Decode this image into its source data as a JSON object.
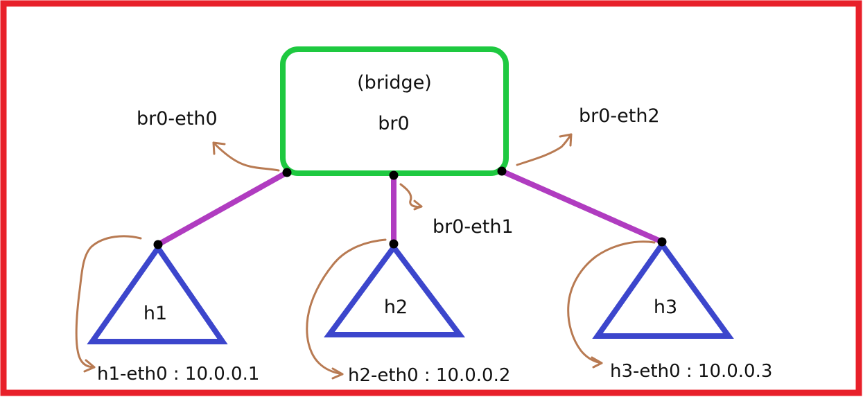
{
  "bridge": {
    "type_label": "(bridge)",
    "name": "br0"
  },
  "ports": {
    "eth0": "br0-eth0",
    "eth1": "br0-eth1",
    "eth2": "br0-eth2"
  },
  "hosts": [
    {
      "name": "h1",
      "interface_label": "h1-eth0 : 10.0.0.1"
    },
    {
      "name": "h2",
      "interface_label": "h2-eth0 : 10.0.0.2"
    },
    {
      "name": "h3",
      "interface_label": "h3-eth0 : 10.0.0.3"
    }
  ],
  "colors": {
    "frame": "#e8202a",
    "bridge": "#1ec940",
    "link": "#b03cc0",
    "host": "#3c46cc",
    "arrow": "#b87a52",
    "node": "#000000"
  }
}
